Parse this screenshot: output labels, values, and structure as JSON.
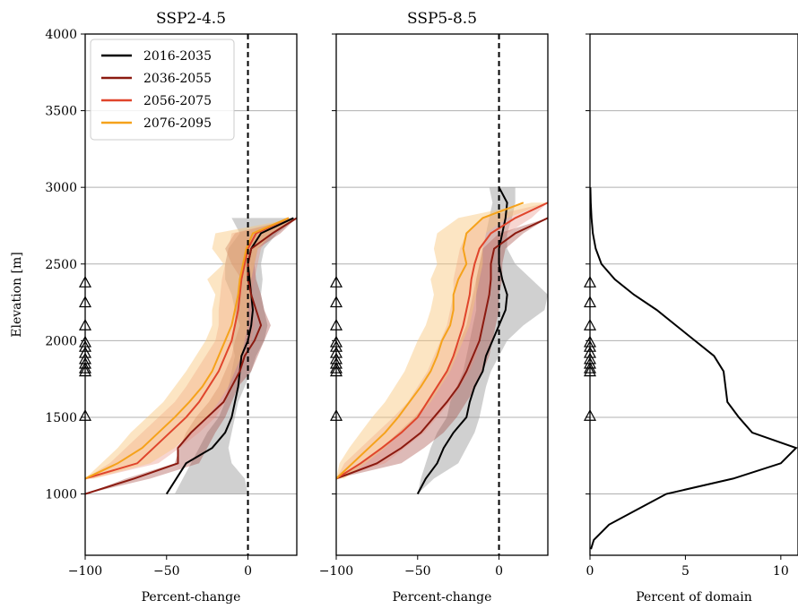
{
  "chart_data": [
    {
      "type": "line",
      "title": "SSP2-4.5",
      "xlabel": "Percent-change",
      "ylabel": "Elevation [m]",
      "xlim": [
        -100,
        30
      ],
      "ylim": [
        600,
        4000
      ],
      "x_ticks": [
        "−100",
        "−50",
        "0"
      ],
      "y_ticks": [
        "4000",
        "3500",
        "3000",
        "2500",
        "2000",
        "1500",
        "1000"
      ],
      "grid": "horizontal",
      "legend": "upper-left",
      "reference_line_x": 0,
      "station_elevations": [
        2380,
        2250,
        2100,
        1990,
        1960,
        1920,
        1880,
        1850,
        1820,
        1800,
        1510
      ],
      "series": [
        {
          "name": "2016-2035",
          "color": "#000000",
          "elevation": [
            1000,
            1100,
            1200,
            1300,
            1400,
            1500,
            1600,
            1700,
            1800,
            1900,
            2000,
            2100,
            2200,
            2300,
            2400,
            2500,
            2600,
            2700,
            2800
          ],
          "values": [
            -50,
            -44,
            -38,
            -22,
            -14,
            -10,
            -8,
            -6,
            -5,
            -4,
            0,
            2,
            3,
            2,
            1,
            0,
            2,
            8,
            28
          ],
          "band_low": [
            0,
            -2,
            -10,
            -12,
            -10,
            -8,
            -6,
            -2,
            2,
            5,
            10,
            12,
            10,
            8,
            9,
            8,
            10,
            18,
            30
          ],
          "band_high": [
            -45,
            -40,
            -35,
            -30,
            -25,
            -18,
            -14,
            -12,
            -10,
            -8,
            -10,
            -8,
            -8,
            -10,
            -14,
            -14,
            -12,
            -5,
            -10
          ]
        },
        {
          "name": "2036-2055",
          "color": "#8b1a10",
          "elevation": [
            1000,
            1100,
            1200,
            1300,
            1400,
            1500,
            1600,
            1700,
            1800,
            1900,
            2000,
            2100,
            2200,
            2300,
            2400,
            2500,
            2600,
            2700,
            2800
          ],
          "values": [
            -100,
            -70,
            -43,
            -43,
            -35,
            -25,
            -15,
            -10,
            -5,
            -2,
            4,
            8,
            5,
            2,
            0,
            0,
            2,
            15,
            30
          ],
          "band_low": [
            -100,
            -75,
            -45,
            -42,
            -38,
            -32,
            -24,
            -18,
            -14,
            -10,
            -8,
            -5,
            -8,
            -6,
            -4,
            -10,
            -14,
            -8,
            30
          ],
          "band_high": [
            -100,
            -60,
            -30,
            -25,
            -20,
            -14,
            -10,
            -6,
            2,
            6,
            10,
            14,
            10,
            8,
            5,
            4,
            6,
            20,
            30
          ]
        },
        {
          "name": "2056-2075",
          "color": "#e0452c",
          "elevation": [
            1100,
            1200,
            1300,
            1400,
            1500,
            1600,
            1700,
            1800,
            1900,
            2000,
            2100,
            2200,
            2300,
            2400,
            2500,
            2600,
            2700,
            2800
          ],
          "values": [
            -100,
            -68,
            -58,
            -48,
            -38,
            -30,
            -24,
            -18,
            -14,
            -10,
            -8,
            -6,
            -5,
            -4,
            -2,
            0,
            5,
            25
          ],
          "band_low": [
            -100,
            -85,
            -75,
            -65,
            -55,
            -45,
            -38,
            -32,
            -26,
            -20,
            -18,
            -18,
            -17,
            -16,
            -14,
            -12,
            -10,
            30
          ],
          "band_high": [
            -95,
            -55,
            -42,
            -30,
            -20,
            -14,
            -10,
            -6,
            -2,
            2,
            4,
            3,
            2,
            4,
            6,
            8,
            15,
            30
          ]
        },
        {
          "name": "2076-2095",
          "color": "#f5a21b",
          "elevation": [
            1100,
            1200,
            1300,
            1400,
            1500,
            1600,
            1700,
            1800,
            1900,
            2000,
            2100,
            2200,
            2300,
            2400,
            2500,
            2600,
            2700,
            2800
          ],
          "values": [
            -100,
            -80,
            -65,
            -55,
            -45,
            -36,
            -28,
            -22,
            -18,
            -14,
            -10,
            -8,
            -6,
            -5,
            -3,
            -1,
            3,
            25
          ],
          "band_low": [
            -100,
            -90,
            -80,
            -72,
            -62,
            -52,
            -45,
            -38,
            -32,
            -26,
            -22,
            -22,
            -20,
            -25,
            -15,
            -22,
            -20,
            30
          ],
          "band_high": [
            -95,
            -60,
            -45,
            -35,
            -25,
            -18,
            -12,
            -8,
            -4,
            -2,
            0,
            0,
            2,
            2,
            4,
            6,
            15,
            30
          ]
        }
      ]
    },
    {
      "type": "line",
      "title": "SSP5-8.5",
      "xlabel": "Percent-change",
      "ylabel": "",
      "xlim": [
        -100,
        30
      ],
      "ylim": [
        600,
        4000
      ],
      "x_ticks": [
        "−100",
        "−50",
        "0"
      ],
      "grid": "horizontal",
      "reference_line_x": 0,
      "station_elevations": [
        2380,
        2250,
        2100,
        1990,
        1960,
        1920,
        1880,
        1850,
        1820,
        1800,
        1510
      ],
      "series": [
        {
          "name": "2016-2035",
          "color": "#000000",
          "elevation": [
            1000,
            1100,
            1200,
            1300,
            1400,
            1500,
            1600,
            1700,
            1800,
            1900,
            2000,
            2100,
            2200,
            2300,
            2400,
            2500,
            2600,
            2700,
            2800,
            2900,
            3000
          ],
          "values": [
            -50,
            -45,
            -38,
            -34,
            -28,
            -20,
            -18,
            -15,
            -10,
            -8,
            -4,
            0,
            4,
            5,
            2,
            0,
            0,
            2,
            4,
            5,
            0
          ],
          "band_low": [
            -50,
            -40,
            -25,
            -20,
            -15,
            -12,
            -10,
            -8,
            -5,
            0,
            5,
            15,
            28,
            30,
            20,
            10,
            5,
            5,
            8,
            10,
            10
          ],
          "band_high": [
            -50,
            -48,
            -45,
            -42,
            -38,
            -32,
            -30,
            -26,
            -22,
            -20,
            -18,
            -16,
            -14,
            -14,
            -14,
            -12,
            -10,
            -8,
            -6,
            -4,
            -6
          ]
        },
        {
          "name": "2036-2055",
          "color": "#8b1a10",
          "elevation": [
            1100,
            1200,
            1300,
            1400,
            1500,
            1600,
            1700,
            1800,
            1900,
            2000,
            2100,
            2200,
            2300,
            2400,
            2500,
            2600,
            2700,
            2800
          ],
          "values": [
            -100,
            -75,
            -60,
            -48,
            -40,
            -32,
            -25,
            -20,
            -16,
            -12,
            -10,
            -8,
            -6,
            -5,
            -5,
            -3,
            10,
            30
          ],
          "band_low": [
            -100,
            -85,
            -72,
            -62,
            -52,
            -44,
            -38,
            -32,
            -28,
            -24,
            -20,
            -18,
            -16,
            -14,
            -12,
            -10,
            0,
            30
          ],
          "band_high": [
            -100,
            -60,
            -46,
            -34,
            -26,
            -20,
            -14,
            -10,
            -6,
            -4,
            -2,
            0,
            0,
            2,
            2,
            4,
            15,
            30
          ]
        },
        {
          "name": "2056-2075",
          "color": "#e0452c",
          "elevation": [
            1100,
            1200,
            1300,
            1400,
            1500,
            1600,
            1700,
            1800,
            1900,
            2000,
            2100,
            2200,
            2300,
            2400,
            2500,
            2600,
            2700,
            2800,
            2900
          ],
          "values": [
            -100,
            -85,
            -72,
            -60,
            -50,
            -44,
            -38,
            -32,
            -28,
            -25,
            -22,
            -20,
            -18,
            -17,
            -15,
            -12,
            -5,
            10,
            30
          ],
          "band_low": [
            -100,
            -95,
            -85,
            -75,
            -65,
            -56,
            -50,
            -44,
            -40,
            -36,
            -32,
            -30,
            -28,
            -28,
            -26,
            -24,
            -20,
            -10,
            30
          ],
          "band_high": [
            -100,
            -70,
            -58,
            -46,
            -38,
            -30,
            -24,
            -18,
            -14,
            -12,
            -10,
            -8,
            -6,
            -5,
            -4,
            -2,
            5,
            20,
            30
          ]
        },
        {
          "name": "2076-2095",
          "color": "#f5a21b",
          "elevation": [
            1100,
            1200,
            1300,
            1400,
            1500,
            1600,
            1700,
            1800,
            1900,
            2000,
            2100,
            2200,
            2300,
            2400,
            2500,
            2600,
            2700,
            2800,
            2900
          ],
          "values": [
            -100,
            -90,
            -80,
            -70,
            -62,
            -55,
            -48,
            -42,
            -38,
            -35,
            -30,
            -28,
            -28,
            -25,
            -20,
            -22,
            -20,
            -10,
            15
          ],
          "band_low": [
            -100,
            -98,
            -92,
            -85,
            -78,
            -70,
            -64,
            -58,
            -54,
            -50,
            -45,
            -42,
            -40,
            -42,
            -38,
            -40,
            -38,
            -25,
            20
          ],
          "band_high": [
            -95,
            -82,
            -70,
            -60,
            -50,
            -42,
            -36,
            -30,
            -26,
            -22,
            -18,
            -16,
            -14,
            -12,
            -10,
            -10,
            -8,
            5,
            30
          ]
        }
      ]
    },
    {
      "type": "line",
      "title": "",
      "xlabel": "Percent of domain",
      "ylabel": "",
      "xlim": [
        0,
        10.9
      ],
      "ylim": [
        600,
        4000
      ],
      "x_ticks": [
        "0",
        "5",
        "10"
      ],
      "grid": "horizontal",
      "station_elevations": [
        2380,
        2250,
        2100,
        1990,
        1960,
        1920,
        1880,
        1850,
        1820,
        1800,
        1510
      ],
      "series": [
        {
          "name": "",
          "color": "#000000",
          "elevation": [
            640,
            700,
            800,
            900,
            1000,
            1100,
            1200,
            1300,
            1400,
            1500,
            1600,
            1700,
            1800,
            1900,
            2000,
            2100,
            2200,
            2300,
            2400,
            2500,
            2600,
            2700,
            2800,
            2900,
            3000
          ],
          "values": [
            0.05,
            0.2,
            1.0,
            2.5,
            4.0,
            7.5,
            10.0,
            10.8,
            8.5,
            7.8,
            7.2,
            7.1,
            7.0,
            6.5,
            5.5,
            4.5,
            3.5,
            2.3,
            1.3,
            0.6,
            0.3,
            0.15,
            0.08,
            0.04,
            0.02
          ]
        }
      ]
    }
  ]
}
